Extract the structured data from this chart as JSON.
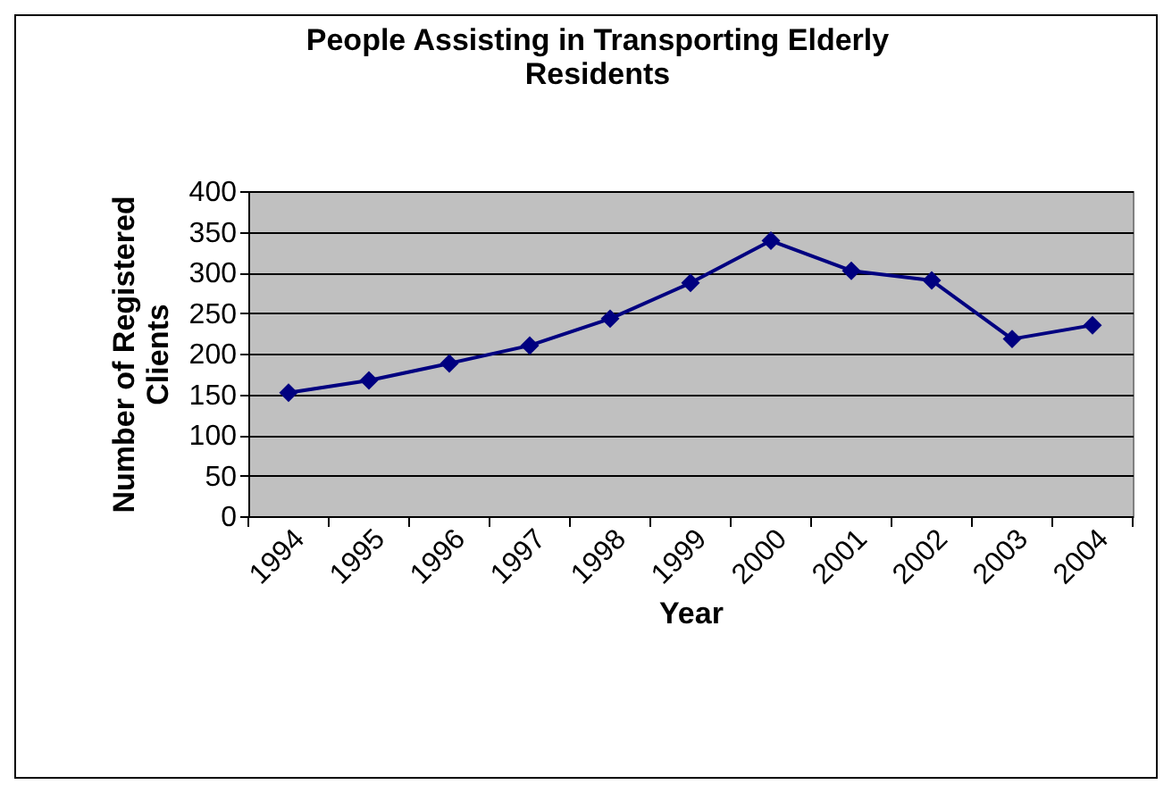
{
  "chart_data": {
    "type": "line",
    "title": "People Assisting in Transporting Elderly Residents",
    "xlabel": "Year",
    "ylabel": "Number of Registered Clients",
    "categories": [
      "1994",
      "1995",
      "1996",
      "1997",
      "1998",
      "1999",
      "2000",
      "2001",
      "2002",
      "2003",
      "2004"
    ],
    "series": [
      {
        "color": "#000080",
        "values": [
          152,
          167,
          188,
          210,
          243,
          287,
          339,
          302,
          290,
          218,
          235
        ]
      }
    ],
    "ylim": [
      0,
      400
    ],
    "yticks": [
      0,
      50,
      100,
      150,
      200,
      250,
      300,
      350,
      400
    ],
    "grid": "y",
    "marker": "diamond",
    "line_style": "solid"
  }
}
